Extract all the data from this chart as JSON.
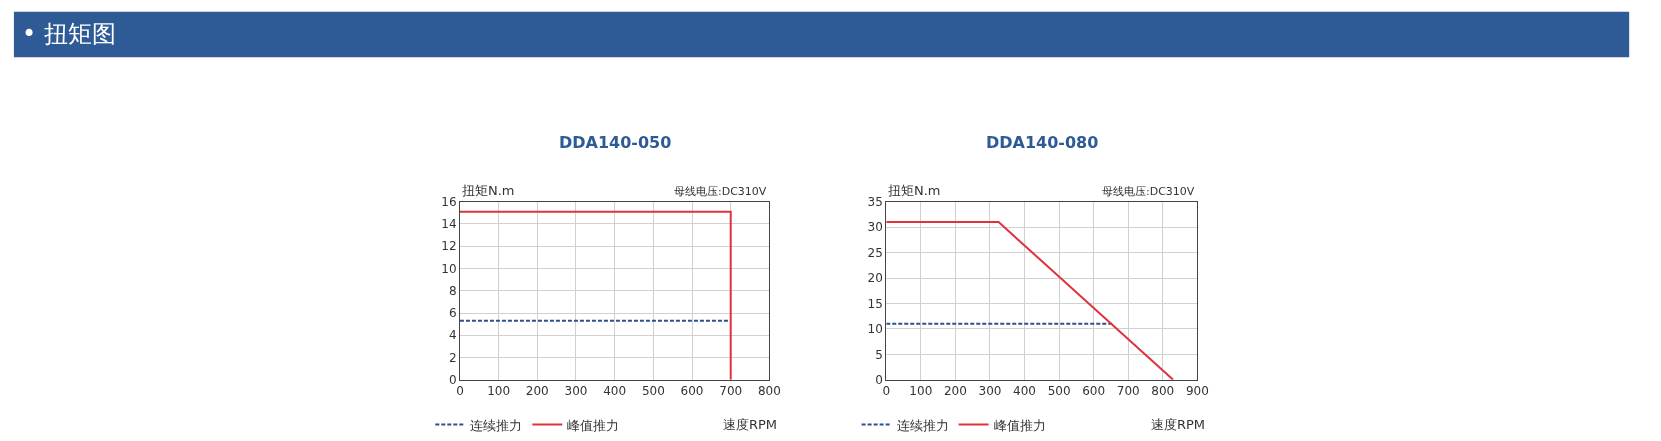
{
  "chart_data": [
    {
      "type": "other",
      "title": "• 扭矩图",
      "color": "#2e5a96"
    },
    {
      "type": "line",
      "title": "DDA140-050",
      "ylabel": "扭矩N.m",
      "xlabel": "速度RPM",
      "annotations": [
        "母线电压:DC310V"
      ],
      "xlim": [
        0,
        800
      ],
      "xticks": [
        0,
        100,
        200,
        300,
        400,
        500,
        600,
        700,
        800
      ],
      "ylim": [
        0,
        16
      ],
      "yticks": [
        0,
        2,
        4,
        6,
        8,
        10,
        12,
        14,
        16
      ],
      "grid": true,
      "legend": "bottom left",
      "marker": "none",
      "series": [
        {
          "name": "连续推力",
          "color": "#2f4f8f",
          "line_style": "dashed",
          "x": [
            0,
            700
          ],
          "values": [
            5.3,
            5.3
          ]
        },
        {
          "name": "峰值推力",
          "color": "#e0323c",
          "line_style": "solid",
          "x": [
            0,
            700,
            700
          ],
          "values": [
            15.1,
            15.1,
            0
          ]
        }
      ]
    },
    {
      "type": "line",
      "title": "DDA140-080",
      "ylabel": "扭矩N.m",
      "xlabel": "速度RPM",
      "annotations": [
        "母线电压:DC310V"
      ],
      "xlim": [
        0,
        900
      ],
      "xticks": [
        0,
        100,
        200,
        300,
        400,
        500,
        600,
        700,
        800,
        900
      ],
      "ylim": [
        0,
        35
      ],
      "yticks": [
        0,
        5,
        10,
        15,
        20,
        25,
        30,
        35
      ],
      "grid": true,
      "legend": "bottom left",
      "marker": "none",
      "series": [
        {
          "name": "连续推力",
          "color": "#2f4f8f",
          "line_style": "dashed",
          "x": [
            0,
            655
          ],
          "values": [
            11,
            11
          ]
        },
        {
          "name": "峰值推力",
          "color": "#e0323c",
          "line_style": "solid",
          "x": [
            0,
            325,
            830
          ],
          "values": [
            31,
            31,
            0
          ]
        }
      ]
    }
  ]
}
